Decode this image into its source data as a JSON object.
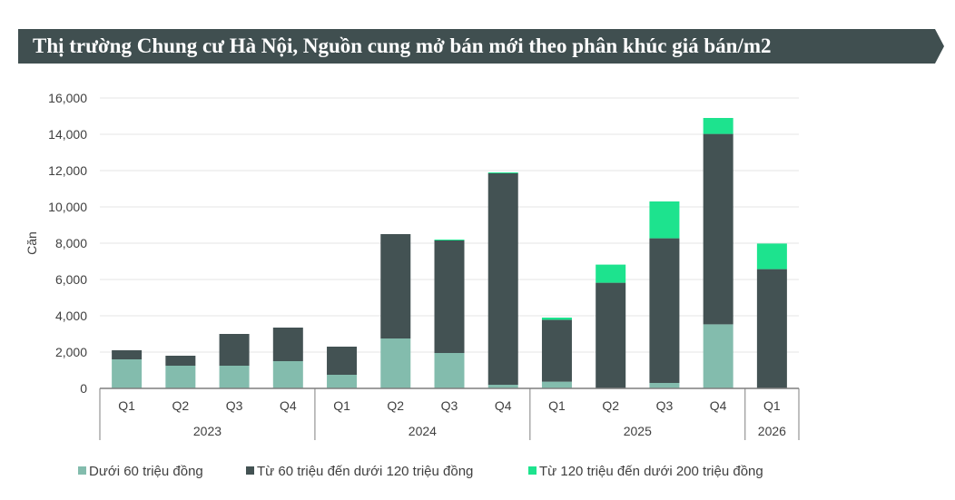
{
  "chart_data": {
    "type": "bar",
    "stacked": true,
    "title": "Thị trường Chung cư Hà Nội, Nguồn cung mở bán mới theo phân khúc giá bán/m2",
    "ylabel": "Căn",
    "xlabel": "",
    "ylim": [
      0,
      16000
    ],
    "yticks": [
      "0",
      "2,000",
      "4,000",
      "6,000",
      "8,000",
      "10,000",
      "12,000",
      "14,000",
      "16,000"
    ],
    "grid": true,
    "legend_position": "bottom",
    "categories": [
      "Q1",
      "Q2",
      "Q3",
      "Q4",
      "Q1",
      "Q2",
      "Q3",
      "Q4",
      "Q1",
      "Q2",
      "Q3",
      "Q4",
      "Q1"
    ],
    "groups": [
      {
        "label": "2023",
        "count": 4
      },
      {
        "label": "2024",
        "count": 4
      },
      {
        "label": "2025",
        "count": 4
      },
      {
        "label": "2026",
        "count": 1
      }
    ],
    "series": [
      {
        "name": "Dưới 60 triệu đồng",
        "color": "#83bcad",
        "values": [
          1600,
          1250,
          1250,
          1500,
          750,
          2750,
          1950,
          200,
          370,
          0,
          300,
          3530,
          0
        ]
      },
      {
        "name": "Từ  60 triệu đến dưới 120 triệu đồng",
        "color": "#435253",
        "values": [
          500,
          550,
          1750,
          1850,
          1550,
          5750,
          6200,
          11650,
          3410,
          5820,
          7970,
          10490,
          6570
        ]
      },
      {
        "name": "Từ 120 triệu đến dưới 200 triệu đồng",
        "color": "#1de38e",
        "values": [
          0,
          0,
          0,
          0,
          0,
          0,
          50,
          50,
          120,
          1000,
          2030,
          880,
          1410
        ]
      }
    ]
  },
  "banner_color": "#404f50"
}
